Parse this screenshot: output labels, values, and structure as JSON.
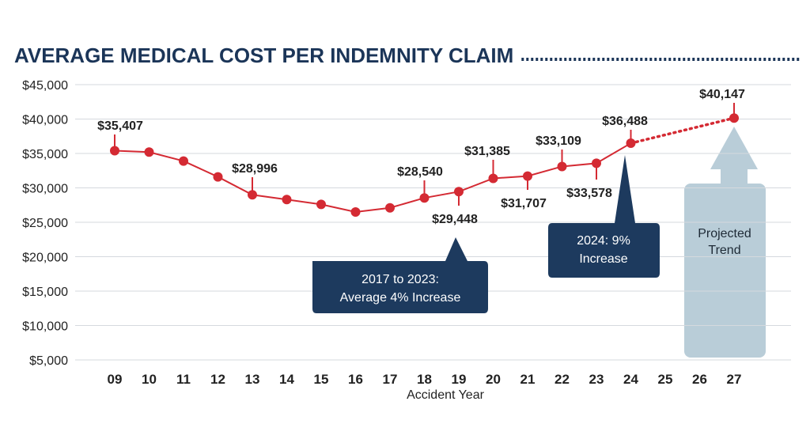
{
  "colors": {
    "title": "#1b3558",
    "line": "#d42a33",
    "grid": "#d5d9de",
    "axis_text": "#222222",
    "callout_bg": "#1d3a5e",
    "callout_text": "#ffffff",
    "projection_bg": "#b9cdd8",
    "projection_text": "#1e2a36"
  },
  "chart_data": {
    "type": "line",
    "title": "AVERAGE MEDICAL COST PER INDEMNITY CLAIM",
    "xlabel": "Accident Year",
    "ylabel": "",
    "categories": [
      "09",
      "10",
      "11",
      "12",
      "13",
      "14",
      "15",
      "16",
      "17",
      "18",
      "19",
      "20",
      "21",
      "22",
      "23",
      "24",
      "25",
      "26",
      "27"
    ],
    "ylim": [
      5000,
      45000
    ],
    "yticks": [
      "$5,000",
      "$10,000",
      "$15,000",
      "$20,000",
      "$25,000",
      "$30,000",
      "$35,000",
      "$40,000",
      "$45,000"
    ],
    "ytick_values": [
      5000,
      10000,
      15000,
      20000,
      25000,
      30000,
      35000,
      40000,
      45000
    ],
    "grid": true,
    "series": [
      {
        "style": "solid",
        "points": [
          {
            "x": "09",
            "y": 35407,
            "label": "$35,407"
          },
          {
            "x": "10",
            "y": 35200
          },
          {
            "x": "11",
            "y": 33900
          },
          {
            "x": "12",
            "y": 31600
          },
          {
            "x": "13",
            "y": 28996,
            "label": "$28,996"
          },
          {
            "x": "14",
            "y": 28300
          },
          {
            "x": "15",
            "y": 27600
          },
          {
            "x": "16",
            "y": 26500
          },
          {
            "x": "17",
            "y": 27100
          },
          {
            "x": "18",
            "y": 28540,
            "label": "$28,540"
          },
          {
            "x": "19",
            "y": 29448,
            "label": "$29,448"
          },
          {
            "x": "20",
            "y": 31385,
            "label": "$31,385"
          },
          {
            "x": "21",
            "y": 31707,
            "label": "$31,707"
          },
          {
            "x": "22",
            "y": 33109,
            "label": "$33,109"
          },
          {
            "x": "23",
            "y": 33578,
            "label": "$33,578"
          },
          {
            "x": "24",
            "y": 36488,
            "label": "$36,488"
          }
        ]
      },
      {
        "style": "dotted",
        "points": [
          {
            "x": "24",
            "y": 36488
          },
          {
            "x": "27",
            "y": 40147,
            "label": "$40,147"
          }
        ]
      }
    ],
    "annotations": [
      {
        "lines": [
          "2017 to 2023:",
          "Average 4% Increase"
        ]
      },
      {
        "lines": [
          "2024: 9%",
          "Increase"
        ]
      },
      {
        "lines": [
          "Projected",
          "Trend"
        ]
      }
    ]
  }
}
